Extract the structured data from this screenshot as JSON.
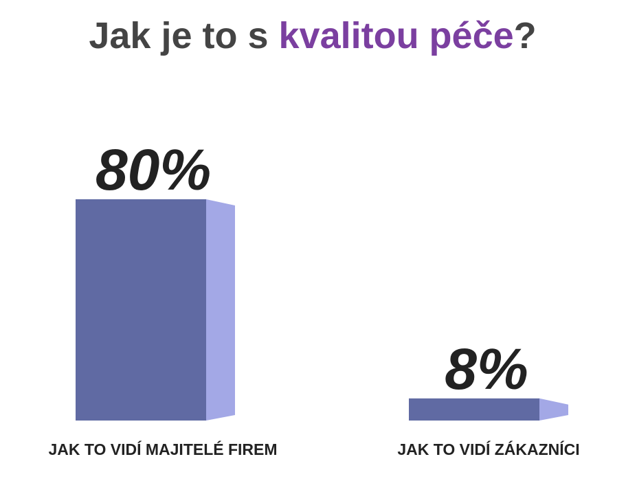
{
  "chart_data": {
    "type": "bar3d",
    "title": [
      "Jak je to s ",
      "kvalitou péče",
      "?"
    ],
    "categories": [
      "JAK TO VIDÍ MAJITELÉ FIREM",
      "JAK TO VIDÍ ZÁKAZNÍCI"
    ],
    "values": [
      80,
      8
    ],
    "value_labels": [
      "80%",
      "8%"
    ],
    "color": "#606aa3",
    "side_color": "#a3a8e6"
  }
}
